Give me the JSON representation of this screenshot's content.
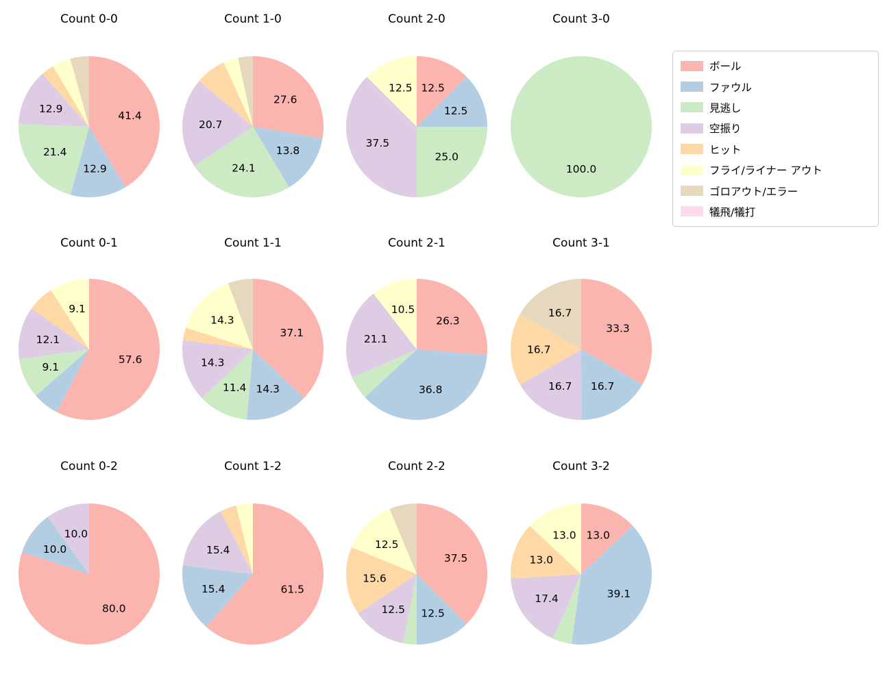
{
  "legend": {
    "position": "upper-right",
    "items": [
      {
        "id": "ball",
        "label": "ボール",
        "color": "#fbb4ae"
      },
      {
        "id": "foul",
        "label": "ファウル",
        "color": "#b3cde3"
      },
      {
        "id": "called-strike",
        "label": "見逃し",
        "color": "#ccebc5"
      },
      {
        "id": "swinging-strike",
        "label": "空振り",
        "color": "#decbe4"
      },
      {
        "id": "hit",
        "label": "ヒット",
        "color": "#fed9a6"
      },
      {
        "id": "fly-liner-out",
        "label": "フライ/ライナー アウト",
        "color": "#ffffcc"
      },
      {
        "id": "groundout-error",
        "label": "ゴロアウト/エラー",
        "color": "#e5d8bd"
      },
      {
        "id": "sacrifice",
        "label": "犠飛/犠打",
        "color": "#fddaec"
      }
    ]
  },
  "chart_data": [
    {
      "type": "pie",
      "title": "Count 0-0",
      "start_angle_deg": 90,
      "direction": "clockwise",
      "unit": "percent",
      "slices": [
        {
          "category": "ball",
          "value": 41.4,
          "pct_label": "41.4"
        },
        {
          "category": "foul",
          "value": 12.9,
          "pct_label": "12.9"
        },
        {
          "category": "called-strike",
          "value": 21.4,
          "pct_label": "21.4"
        },
        {
          "category": "swinging-strike",
          "value": 12.9,
          "pct_label": "12.9"
        },
        {
          "category": "hit",
          "value": 2.9,
          "pct_label": null
        },
        {
          "category": "fly-liner-out",
          "value": 4.3,
          "pct_label": null
        },
        {
          "category": "groundout-error",
          "value": 4.3,
          "pct_label": null
        }
      ]
    },
    {
      "type": "pie",
      "title": "Count 1-0",
      "start_angle_deg": 90,
      "direction": "clockwise",
      "unit": "percent",
      "slices": [
        {
          "category": "ball",
          "value": 27.6,
          "pct_label": "27.6"
        },
        {
          "category": "foul",
          "value": 13.8,
          "pct_label": "13.8"
        },
        {
          "category": "called-strike",
          "value": 24.1,
          "pct_label": "24.1"
        },
        {
          "category": "swinging-strike",
          "value": 20.7,
          "pct_label": "20.7"
        },
        {
          "category": "hit",
          "value": 6.9,
          "pct_label": null
        },
        {
          "category": "fly-liner-out",
          "value": 3.4,
          "pct_label": null
        },
        {
          "category": "groundout-error",
          "value": 3.4,
          "pct_label": null
        }
      ]
    },
    {
      "type": "pie",
      "title": "Count 2-0",
      "start_angle_deg": 90,
      "direction": "clockwise",
      "unit": "percent",
      "slices": [
        {
          "category": "ball",
          "value": 12.5,
          "pct_label": "12.5"
        },
        {
          "category": "foul",
          "value": 12.5,
          "pct_label": "12.5"
        },
        {
          "category": "called-strike",
          "value": 25.0,
          "pct_label": "25.0"
        },
        {
          "category": "swinging-strike",
          "value": 37.5,
          "pct_label": "37.5"
        },
        {
          "category": "fly-liner-out",
          "value": 12.5,
          "pct_label": "12.5"
        }
      ]
    },
    {
      "type": "pie",
      "title": "Count 3-0",
      "start_angle_deg": 90,
      "direction": "clockwise",
      "unit": "percent",
      "slices": [
        {
          "category": "called-strike",
          "value": 100.0,
          "pct_label": "100.0"
        }
      ]
    },
    {
      "type": "pie",
      "title": "Count 0-1",
      "start_angle_deg": 90,
      "direction": "clockwise",
      "unit": "percent",
      "slices": [
        {
          "category": "ball",
          "value": 57.6,
          "pct_label": "57.6"
        },
        {
          "category": "foul",
          "value": 6.1,
          "pct_label": null
        },
        {
          "category": "called-strike",
          "value": 9.1,
          "pct_label": "9.1"
        },
        {
          "category": "swinging-strike",
          "value": 12.1,
          "pct_label": "12.1"
        },
        {
          "category": "hit",
          "value": 6.1,
          "pct_label": null
        },
        {
          "category": "fly-liner-out",
          "value": 9.1,
          "pct_label": "9.1"
        }
      ]
    },
    {
      "type": "pie",
      "title": "Count 1-1",
      "start_angle_deg": 90,
      "direction": "clockwise",
      "unit": "percent",
      "slices": [
        {
          "category": "ball",
          "value": 37.1,
          "pct_label": "37.1"
        },
        {
          "category": "foul",
          "value": 14.3,
          "pct_label": "14.3"
        },
        {
          "category": "called-strike",
          "value": 11.4,
          "pct_label": "11.4"
        },
        {
          "category": "swinging-strike",
          "value": 14.3,
          "pct_label": "14.3"
        },
        {
          "category": "hit",
          "value": 2.9,
          "pct_label": null
        },
        {
          "category": "fly-liner-out",
          "value": 14.3,
          "pct_label": "14.3"
        },
        {
          "category": "groundout-error",
          "value": 5.7,
          "pct_label": null
        }
      ]
    },
    {
      "type": "pie",
      "title": "Count 2-1",
      "start_angle_deg": 90,
      "direction": "clockwise",
      "unit": "percent",
      "slices": [
        {
          "category": "ball",
          "value": 26.3,
          "pct_label": "26.3"
        },
        {
          "category": "foul",
          "value": 36.8,
          "pct_label": "36.8"
        },
        {
          "category": "called-strike",
          "value": 5.3,
          "pct_label": null
        },
        {
          "category": "swinging-strike",
          "value": 21.1,
          "pct_label": "21.1"
        },
        {
          "category": "fly-liner-out",
          "value": 10.5,
          "pct_label": "10.5"
        }
      ]
    },
    {
      "type": "pie",
      "title": "Count 3-1",
      "start_angle_deg": 90,
      "direction": "clockwise",
      "unit": "percent",
      "slices": [
        {
          "category": "ball",
          "value": 33.3,
          "pct_label": "33.3"
        },
        {
          "category": "foul",
          "value": 16.7,
          "pct_label": "16.7"
        },
        {
          "category": "swinging-strike",
          "value": 16.7,
          "pct_label": "16.7"
        },
        {
          "category": "hit",
          "value": 16.7,
          "pct_label": "16.7"
        },
        {
          "category": "groundout-error",
          "value": 16.7,
          "pct_label": "16.7"
        }
      ]
    },
    {
      "type": "pie",
      "title": "Count 0-2",
      "start_angle_deg": 90,
      "direction": "clockwise",
      "unit": "percent",
      "slices": [
        {
          "category": "ball",
          "value": 80.0,
          "pct_label": "80.0"
        },
        {
          "category": "foul",
          "value": 10.0,
          "pct_label": "10.0"
        },
        {
          "category": "swinging-strike",
          "value": 10.0,
          "pct_label": "10.0"
        }
      ]
    },
    {
      "type": "pie",
      "title": "Count 1-2",
      "start_angle_deg": 90,
      "direction": "clockwise",
      "unit": "percent",
      "slices": [
        {
          "category": "ball",
          "value": 61.5,
          "pct_label": "61.5"
        },
        {
          "category": "foul",
          "value": 15.4,
          "pct_label": "15.4"
        },
        {
          "category": "swinging-strike",
          "value": 15.4,
          "pct_label": "15.4"
        },
        {
          "category": "hit",
          "value": 3.8,
          "pct_label": null
        },
        {
          "category": "fly-liner-out",
          "value": 3.8,
          "pct_label": null
        }
      ]
    },
    {
      "type": "pie",
      "title": "Count 2-2",
      "start_angle_deg": 90,
      "direction": "clockwise",
      "unit": "percent",
      "slices": [
        {
          "category": "ball",
          "value": 37.5,
          "pct_label": "37.5"
        },
        {
          "category": "foul",
          "value": 12.5,
          "pct_label": "12.5"
        },
        {
          "category": "called-strike",
          "value": 3.1,
          "pct_label": null
        },
        {
          "category": "swinging-strike",
          "value": 12.5,
          "pct_label": "12.5"
        },
        {
          "category": "hit",
          "value": 15.6,
          "pct_label": "15.6"
        },
        {
          "category": "fly-liner-out",
          "value": 12.5,
          "pct_label": "12.5"
        },
        {
          "category": "groundout-error",
          "value": 6.3,
          "pct_label": null
        }
      ]
    },
    {
      "type": "pie",
      "title": "Count 3-2",
      "start_angle_deg": 90,
      "direction": "clockwise",
      "unit": "percent",
      "slices": [
        {
          "category": "ball",
          "value": 13.0,
          "pct_label": "13.0"
        },
        {
          "category": "foul",
          "value": 39.1,
          "pct_label": "39.1"
        },
        {
          "category": "called-strike",
          "value": 4.3,
          "pct_label": null
        },
        {
          "category": "swinging-strike",
          "value": 17.4,
          "pct_label": "17.4"
        },
        {
          "category": "hit",
          "value": 13.0,
          "pct_label": "13.0"
        },
        {
          "category": "fly-liner-out",
          "value": 13.0,
          "pct_label": "13.0"
        }
      ]
    }
  ]
}
